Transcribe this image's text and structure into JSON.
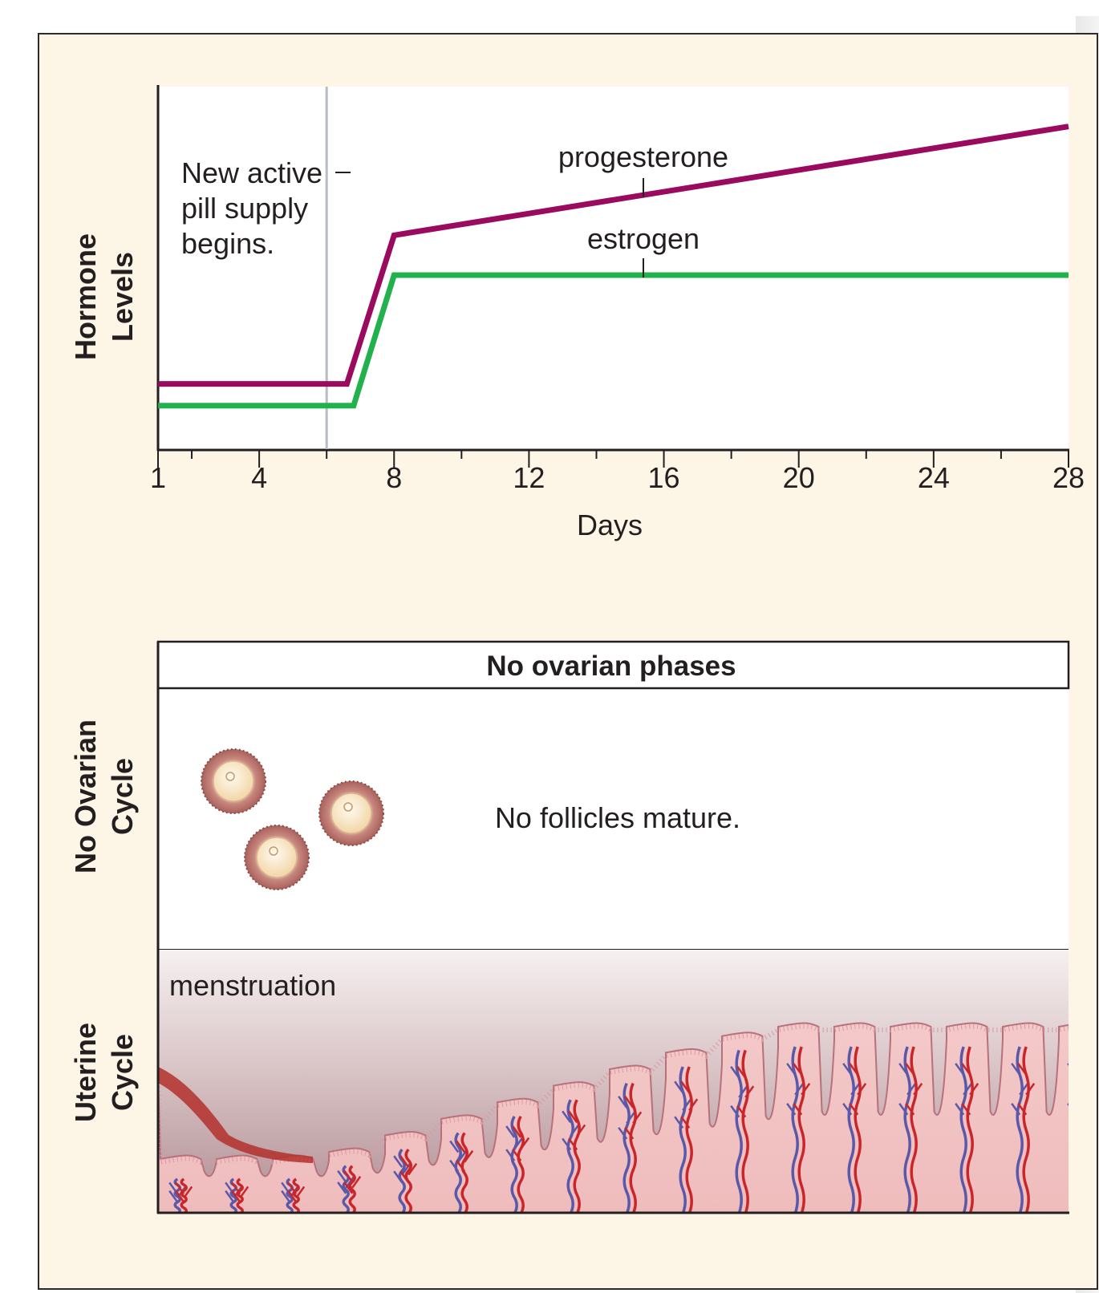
{
  "chart_data": {
    "type": "line",
    "xlabel": "Days",
    "ylabel": "Hormone Levels",
    "xlim": [
      1,
      28
    ],
    "ticks_labeled": [
      1,
      4,
      8,
      12,
      16,
      20,
      24,
      28
    ],
    "annotation": "New active pill supply begins.",
    "annotation_day": 6,
    "series": [
      {
        "name": "progesterone",
        "color": "#9a0b60",
        "points": [
          [
            1,
            0.18
          ],
          [
            6.6,
            0.18
          ],
          [
            8,
            0.59
          ],
          [
            28,
            0.89
          ]
        ]
      },
      {
        "name": "estrogen",
        "color": "#22b14c",
        "points": [
          [
            1,
            0.12
          ],
          [
            6.8,
            0.12
          ],
          [
            8,
            0.48
          ],
          [
            28,
            0.48
          ]
        ]
      }
    ]
  },
  "labels": {
    "hormone_axis": [
      "Hormone",
      "Levels"
    ],
    "annotation_lines": [
      "New active",
      "pill supply",
      "begins."
    ],
    "ovarian_header": "No ovarian phases",
    "ovarian_side": [
      "No Ovarian",
      "Cycle"
    ],
    "ovarian_text": "No follicles mature.",
    "uterine_side": [
      "Uterine",
      "Cycle"
    ],
    "uterine_text": "menstruation"
  },
  "colors": {
    "panel_bg": "#fdf6e6",
    "progesterone": "#9a0b60",
    "estrogen": "#22b14c",
    "marker_line": "#b8bcc4"
  }
}
